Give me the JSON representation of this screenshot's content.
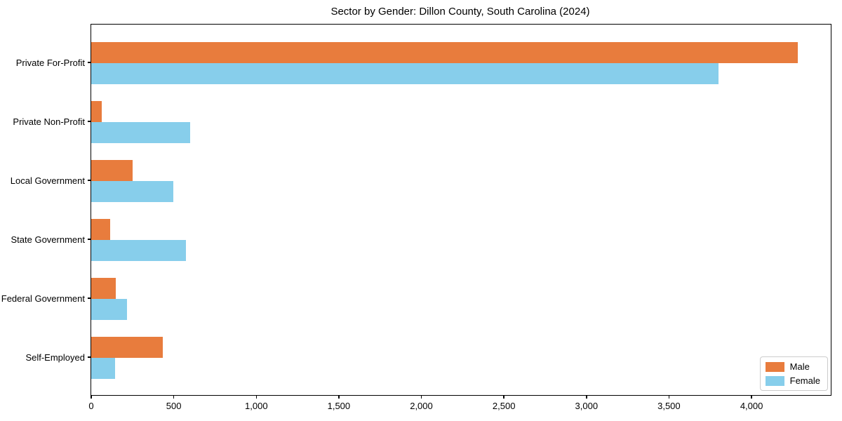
{
  "chart_data": {
    "type": "bar",
    "orientation": "horizontal",
    "title": "Sector by Gender: Dillon County, South Carolina (2024)",
    "categories": [
      "Private For-Profit",
      "Private Non-Profit",
      "Local Government",
      "State Government",
      "Federal Government",
      "Self-Employed"
    ],
    "series": [
      {
        "name": "Male",
        "color": "#E87C3D",
        "values": [
          4280,
          65,
          250,
          115,
          150,
          435
        ]
      },
      {
        "name": "Female",
        "color": "#87CEEB",
        "values": [
          3800,
          600,
          495,
          575,
          215,
          145
        ]
      }
    ],
    "xlabel": "",
    "ylabel": "",
    "xlim": [
      0,
      4480
    ],
    "xticks": [
      0,
      500,
      1000,
      1500,
      2000,
      2500,
      3000,
      3500,
      4000
    ],
    "grid": false,
    "legend_position": "lower right",
    "background_color": "#ffffff",
    "axis_color": "#000000"
  }
}
